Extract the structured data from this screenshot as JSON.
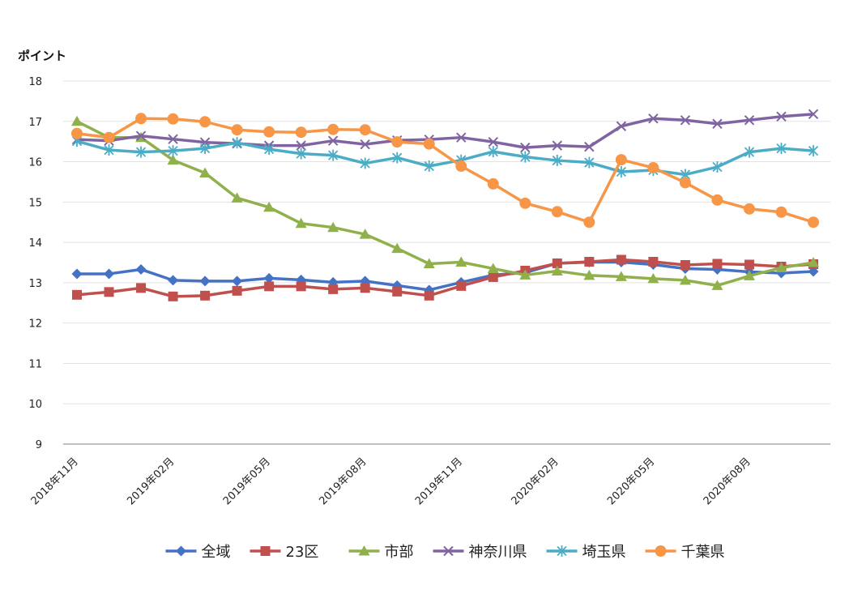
{
  "chart_data": {
    "type": "line",
    "title": "",
    "ylabel": "ポイント",
    "xlabel": "",
    "ylim": [
      9,
      18
    ],
    "yticks": [
      9,
      10,
      11,
      12,
      13,
      14,
      15,
      16,
      17,
      18
    ],
    "x_tick_labels": [
      "2018年11月",
      "2019年02月",
      "2019年05月",
      "2019年08月",
      "2019年11月",
      "2020年02月",
      "2020年05月",
      "2020年08月"
    ],
    "x_tick_every": 3,
    "n_points": 24,
    "grid": true,
    "legend_position": "bottom",
    "series": [
      {
        "name": "全域",
        "color": "#4472c4",
        "marker": "diamond",
        "values": [
          13.22,
          13.22,
          13.33,
          13.06,
          13.04,
          13.04,
          13.11,
          13.07,
          13.01,
          13.04,
          12.93,
          12.82,
          13.01,
          13.19,
          13.25,
          13.48,
          13.51,
          13.51,
          13.45,
          13.35,
          13.33,
          13.27,
          13.24,
          13.28
        ]
      },
      {
        "name": "23区",
        "color": "#c0504d",
        "marker": "square",
        "values": [
          12.7,
          12.77,
          12.87,
          12.66,
          12.68,
          12.8,
          12.91,
          12.91,
          12.84,
          12.87,
          12.78,
          12.68,
          12.92,
          13.14,
          13.3,
          13.48,
          13.52,
          13.57,
          13.52,
          13.44,
          13.47,
          13.45,
          13.4,
          13.46
        ]
      },
      {
        "name": "市部",
        "color": "#8fb04a",
        "marker": "triangle",
        "values": [
          17.0,
          16.6,
          16.6,
          16.04,
          15.72,
          15.1,
          14.87,
          14.47,
          14.37,
          14.2,
          13.85,
          13.47,
          13.51,
          13.35,
          13.19,
          13.29,
          13.18,
          13.15,
          13.1,
          13.06,
          12.93,
          13.17,
          13.37,
          13.5
        ]
      },
      {
        "name": "神奈川県",
        "color": "#8064a2",
        "marker": "x",
        "values": [
          16.55,
          16.52,
          16.64,
          16.56,
          16.48,
          16.45,
          16.4,
          16.4,
          16.52,
          16.43,
          16.53,
          16.55,
          16.6,
          16.49,
          16.35,
          16.4,
          16.37,
          16.88,
          17.07,
          17.03,
          16.94,
          17.03,
          17.12,
          17.18
        ]
      },
      {
        "name": "埼玉県",
        "color": "#4bacc6",
        "marker": "asterisk",
        "values": [
          16.51,
          16.29,
          16.24,
          16.27,
          16.33,
          16.47,
          16.31,
          16.2,
          16.16,
          15.96,
          16.1,
          15.89,
          16.04,
          16.25,
          16.12,
          16.03,
          15.98,
          15.75,
          15.79,
          15.68,
          15.87,
          16.24,
          16.33,
          16.27
        ]
      },
      {
        "name": "千葉県",
        "color": "#f79646",
        "marker": "circle",
        "values": [
          16.7,
          16.6,
          17.07,
          17.06,
          16.99,
          16.79,
          16.74,
          16.73,
          16.8,
          16.79,
          16.49,
          16.44,
          15.89,
          15.45,
          14.97,
          14.76,
          14.5,
          16.05,
          15.85,
          15.48,
          15.05,
          14.83,
          14.75,
          14.5
        ]
      }
    ]
  }
}
